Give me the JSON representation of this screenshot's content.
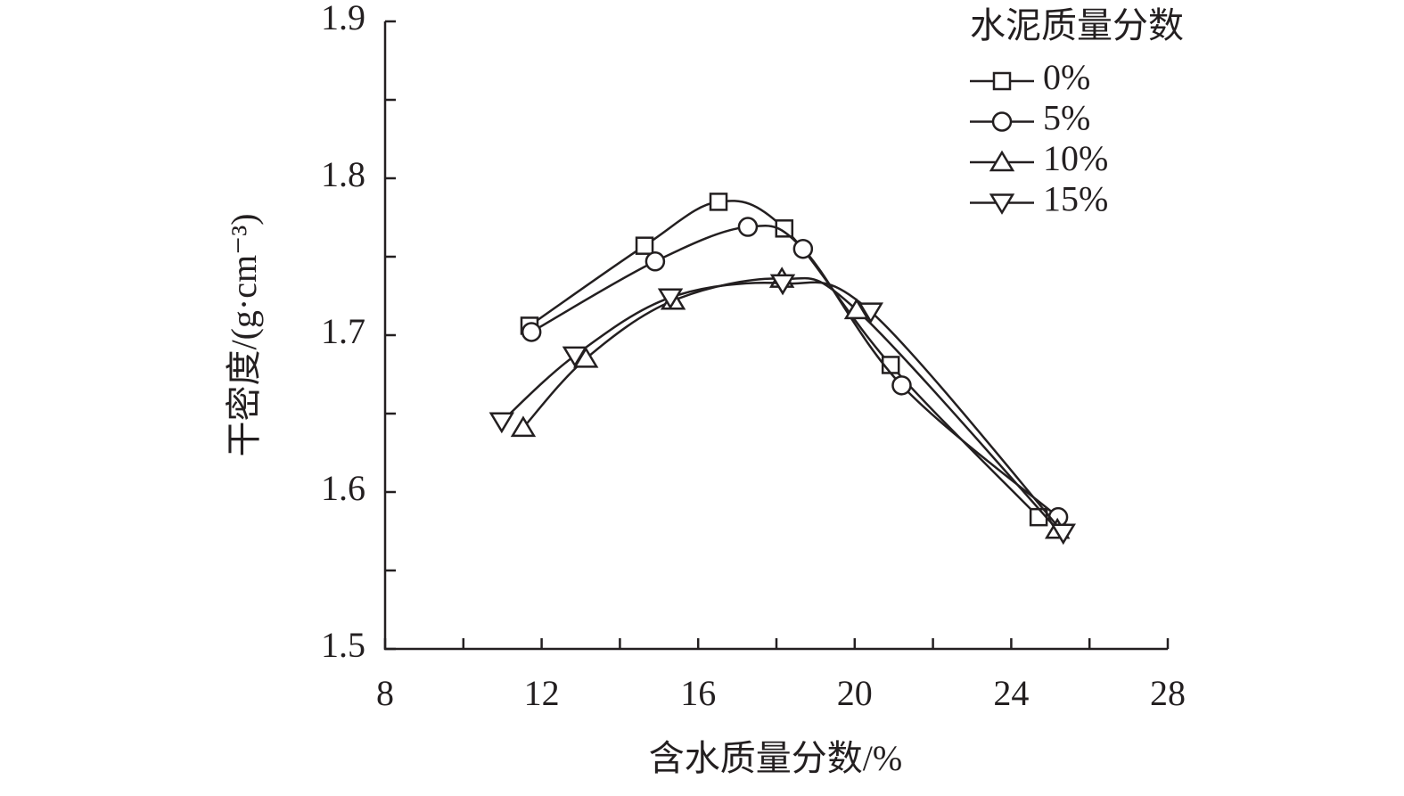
{
  "chart_data": {
    "type": "line",
    "x_label": "含水质量分数/%",
    "y_label": "干密度/(g·cm⁻³)",
    "legend_title": "水泥质量分数",
    "legend_position": "upper right",
    "xlim": [
      8,
      28
    ],
    "xticks": [
      8,
      12,
      16,
      20,
      24,
      28
    ],
    "xminor_ticks": [
      10,
      14,
      18,
      22,
      26
    ],
    "ylim": [
      1.5,
      1.9
    ],
    "yticks": [
      1.5,
      1.6,
      1.7,
      1.8,
      1.9
    ],
    "yminor_ticks": [
      1.55,
      1.65,
      1.75,
      1.85
    ],
    "series": [
      {
        "name": "0%",
        "marker": "square",
        "color": "#231f20",
        "x": [
          11.69,
          14.63,
          16.52,
          18.2,
          20.92,
          24.7
        ],
        "values": [
          1.706,
          1.757,
          1.785,
          1.768,
          1.681,
          1.584
        ]
      },
      {
        "name": "5%",
        "marker": "circle",
        "color": "#231f20",
        "x": [
          11.74,
          14.9,
          17.27,
          18.68,
          21.2,
          25.2
        ],
        "values": [
          1.702,
          1.747,
          1.769,
          1.755,
          1.668,
          1.584
        ]
      },
      {
        "name": "10%",
        "marker": "triangle-up",
        "color": "#231f20",
        "x": [
          11.53,
          13.13,
          15.36,
          18.14,
          20.05,
          25.18
        ],
        "values": [
          1.641,
          1.685,
          1.722,
          1.736,
          1.716,
          1.576
        ]
      },
      {
        "name": "15%",
        "marker": "triangle-down",
        "color": "#231f20",
        "x": [
          10.98,
          12.85,
          15.29,
          18.16,
          20.41,
          25.33
        ],
        "values": [
          1.645,
          1.687,
          1.724,
          1.733,
          1.715,
          1.574
        ]
      }
    ]
  }
}
